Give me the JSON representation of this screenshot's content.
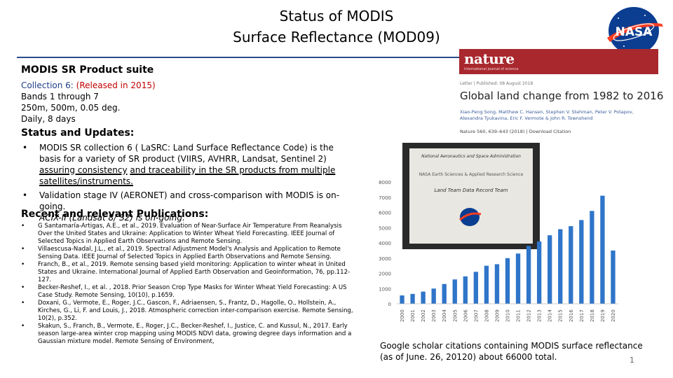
{
  "title": {
    "line1": "Status of MODIS",
    "line2": "Surface Reflectance (MOD09)"
  },
  "left": {
    "product_heading": "MODIS SR Product suite",
    "collection": {
      "prefix": "Collection 6: ",
      "released": "(Released in 2015)"
    },
    "lines": [
      "Bands 1 through 7",
      "250m, 500m, 0.05 deg.",
      "Daily, 8 days"
    ],
    "status_heading": "Status and Updates:",
    "bullet1": {
      "part1": "MODIS SR collection 6 ( LaSRC: Land Surface Reflectance Code) is the basis for a variety of SR product (VIIRS, AVHRR, Landsat, Sentinel 2) ",
      "underlined1": "assuring consistency",
      "underlined2": "and traceability in the SR products from multiple satellites/instruments."
    },
    "bullet2": {
      "line1": "Validation stage IV (AERONET) and cross-comparison with MODIS is on-going.",
      "line2": "ACIX-II (Landsat 8/ S2) is on-going."
    },
    "bullet_symbol": "•",
    "pubs_heading": "Recent and relevant Publications:",
    "publications": [
      "G Santamaría-Artigas, A.E., et al., 2019. Evaluation of Near-Surface Air Temperature From Reanalysis Over the United States and Ukraine: Application to Winter Wheat Yield Forecasting. IEEE Journal of Selected Topics in Applied Earth Observations and Remote Sensing.",
      "Villaescusa-Nadal, J.L., et al., 2019. Spectral Adjustment Model's Analysis and Application to Remote Sensing Data. IEEE Journal of Selected Topics in Applied Earth Observations and Remote Sensing.",
      "Franch, B., et al., 2019. Remote sensing based yield monitoring: Application to winter wheat in United States and Ukraine. International Journal of Applied Earth Observation and Geoinformation, 76, pp.112-127.",
      "Becker-Reshef, I., et al. , 2018. Prior Season Crop Type Masks for Winter Wheat Yield Forecasting: A US Case Study. Remote Sensing, 10(10), p.1659.",
      "Doxani, G., Vermote, E., Roger, J.C., Gascon, F., Adriaensen, S., Frantz, D., Hagolle, O., Hollstein, A., Kirches, G., Li, F. and Louis, J., 2018. Atmospheric correction inter-comparison exercise. Remote Sensing, 10(2), p.352.",
      "Skakun, S., Franch, B., Vermote, E., Roger, J.C., Becker-Reshef, I., Justice, C. and Kussul, N., 2017. Early season large-area winter crop mapping using MODIS NDVI data, growing degree days information and a Gaussian mixture model. Remote Sensing of Environment,"
    ]
  },
  "nature": {
    "logo": "nature",
    "subtitle": "International journal of science",
    "meta": "Letter | Published: 08 August 2018",
    "paper_title": "Global land change from 1982 to 2016",
    "authors": "Xiao-Peng Song, Matthew C. Hansen, Stephen V. Stehman, Peter V. Potapov, Alexandra Tyukavina, Eric F. Vermote & John R. Townshend",
    "cite": "Nature 560, 639–643 (2018)  |  Download Citation"
  },
  "plaque": {
    "line1": "National Aeronautics and Space Administration",
    "line2": "NASA Earth Sciences & Applied Research Science",
    "line3": "Land Team Data Record Team"
  },
  "nasa_logo_text": "NASA",
  "chart_data": {
    "type": "bar",
    "categories": [
      "2000",
      "2001",
      "2002",
      "2003",
      "2004",
      "2005",
      "2006",
      "2007",
      "2008",
      "2009",
      "2010",
      "2011",
      "2012",
      "2013",
      "2014",
      "2015",
      "2016",
      "2017",
      "2018",
      "2019",
      "2020"
    ],
    "values": [
      550,
      650,
      800,
      1000,
      1300,
      1600,
      1800,
      2100,
      2500,
      2600,
      3000,
      3300,
      3800,
      4100,
      4500,
      4900,
      5100,
      5500,
      6100,
      7100,
      3500
    ],
    "ylim": [
      0,
      8000
    ],
    "yticks": [
      "0",
      "1000",
      "2000",
      "3000",
      "4000",
      "5000",
      "6000",
      "7000",
      "8000"
    ],
    "color": "#2f75c9",
    "grid": false
  },
  "caption": {
    "line1": "Google scholar citations containing MODIS surface reflectance",
    "line2": "(as of June. 26, 20120) about 66000 total."
  },
  "page_number": "1"
}
